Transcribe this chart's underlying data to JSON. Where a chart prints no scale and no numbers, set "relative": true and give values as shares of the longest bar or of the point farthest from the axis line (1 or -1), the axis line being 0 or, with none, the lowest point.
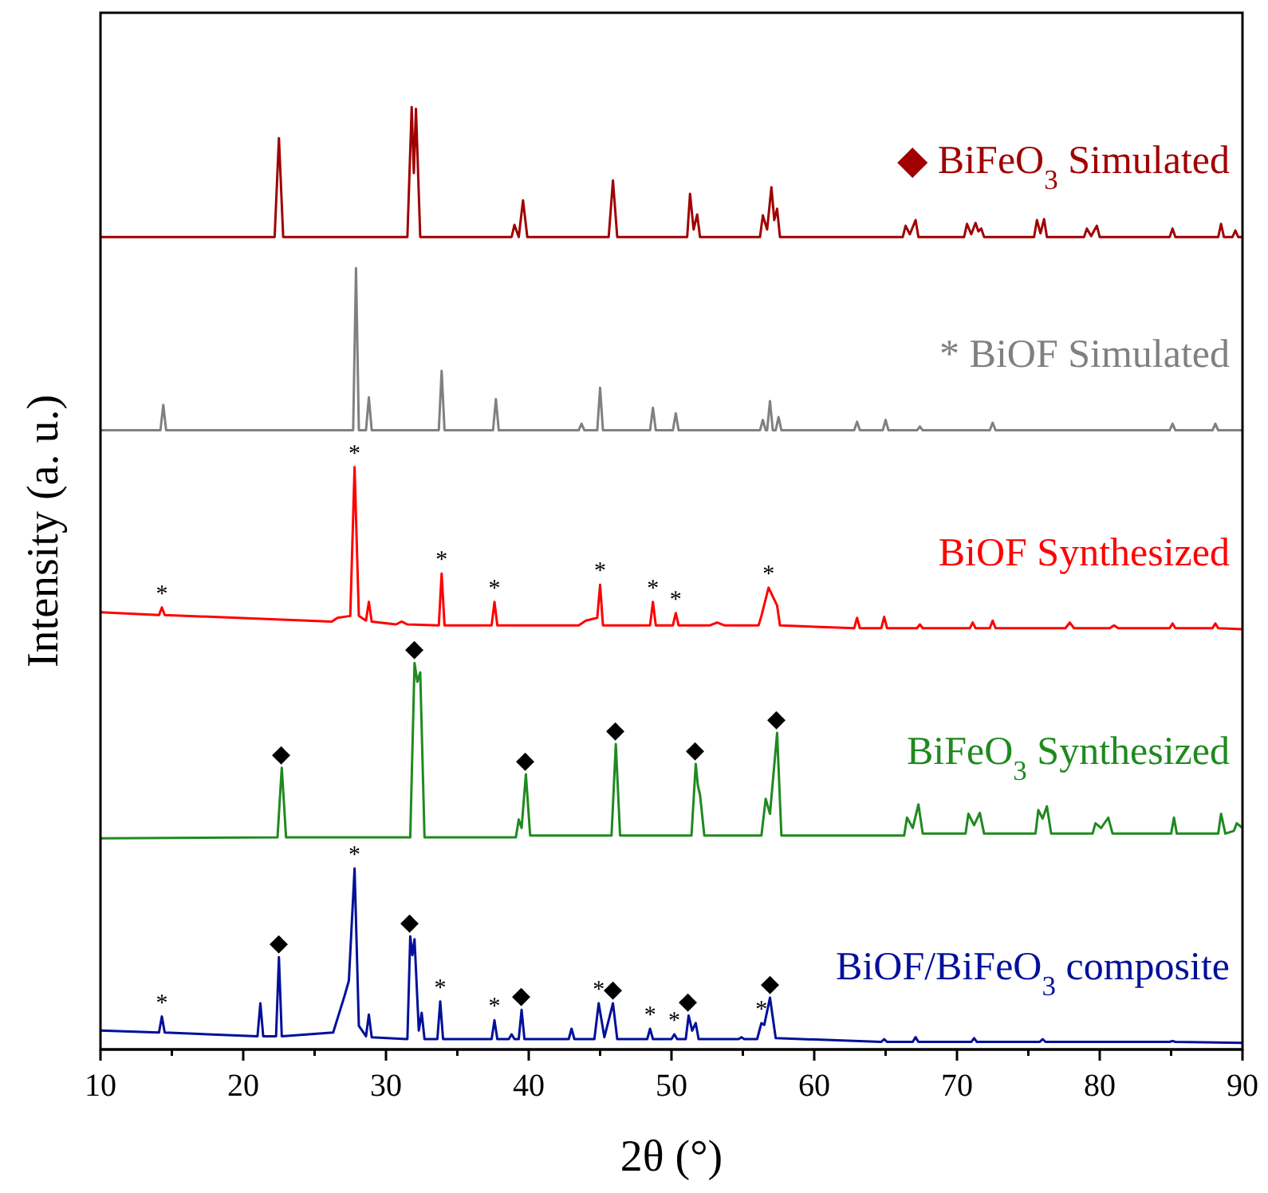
{
  "chart_data": {
    "type": "line",
    "relative": true,
    "xlabel": "2θ (°)",
    "ylabel": "Intensity (a. u.)",
    "xlim": [
      10,
      90
    ],
    "xticks": [
      10,
      {
        "value": 15,
        "label": null
      },
      20,
      {
        "value": 25,
        "label": null
      },
      30,
      {
        "value": 35,
        "label": null
      },
      40,
      {
        "value": 45,
        "label": null
      },
      50,
      {
        "value": 55,
        "label": null
      },
      60,
      {
        "value": 65,
        "label": null
      },
      70,
      {
        "value": 75,
        "label": null
      },
      80,
      {
        "value": 85,
        "label": null
      },
      90
    ],
    "marker": "none",
    "line_style": "solid",
    "grid": false,
    "series": [
      {
        "name": "◆ BiFeO$_{3}$ Simulated",
        "color": "#a00000",
        "x": [
          10,
          22.2,
          22.5,
          22.8,
          31.5,
          31.8,
          31.95,
          32.1,
          32.4,
          38.8,
          39.0,
          39.3,
          39.6,
          39.9,
          45.6,
          45.9,
          46.2,
          51.1,
          51.3,
          51.55,
          51.8,
          52.0,
          56.2,
          56.4,
          56.7,
          57.0,
          57.2,
          57.4,
          57.6,
          66.2,
          66.4,
          66.7,
          67.1,
          67.3,
          70.5,
          70.7,
          71.0,
          71.3,
          71.5,
          71.7,
          71.9,
          75.4,
          75.6,
          75.85,
          76.1,
          76.3,
          78.9,
          79.1,
          79.4,
          79.8,
          80.0,
          84.9,
          85.1,
          85.3,
          88.3,
          88.5,
          88.7,
          89.3,
          89.5,
          89.7,
          90
        ],
        "values": [
          0.862,
          0.862,
          0.967,
          0.862,
          0.862,
          1,
          0.93,
          0.998,
          0.862,
          0.862,
          0.875,
          0.862,
          0.901,
          0.862,
          0.862,
          0.922,
          0.862,
          0.862,
          0.908,
          0.87,
          0.886,
          0.862,
          0.862,
          0.885,
          0.87,
          0.915,
          0.88,
          0.892,
          0.862,
          0.862,
          0.874,
          0.865,
          0.88,
          0.862,
          0.862,
          0.876,
          0.865,
          0.877,
          0.868,
          0.871,
          0.862,
          0.862,
          0.88,
          0.866,
          0.881,
          0.862,
          0.862,
          0.871,
          0.863,
          0.874,
          0.862,
          0.862,
          0.871,
          0.862,
          0.862,
          0.876,
          0.862,
          0.862,
          0.869,
          0.862,
          0.862
        ]
      },
      {
        "name": "* BiOF Simulated",
        "color": "#808080",
        "x": [
          10,
          14.2,
          14.4,
          14.6,
          27.7,
          27.9,
          28.1,
          28.6,
          28.8,
          29.0,
          33.7,
          33.9,
          34.1,
          37.5,
          37.7,
          37.9,
          43.5,
          43.7,
          43.9,
          44.8,
          45.0,
          45.2,
          48.5,
          48.7,
          48.9,
          50.1,
          50.3,
          50.5,
          56.2,
          56.4,
          56.6,
          56.7,
          56.9,
          57.1,
          57.3,
          57.5,
          57.7,
          62.8,
          63.0,
          63.2,
          64.8,
          65.0,
          65.2,
          67.2,
          67.4,
          67.6,
          72.3,
          72.5,
          72.7,
          84.9,
          85.1,
          85.3,
          87.9,
          88.1,
          88.3,
          90
        ],
        "values": [
          0.657,
          0.657,
          0.684,
          0.657,
          0.657,
          0.829,
          0.657,
          0.657,
          0.692,
          0.657,
          0.657,
          0.72,
          0.657,
          0.657,
          0.69,
          0.657,
          0.657,
          0.664,
          0.657,
          0.657,
          0.702,
          0.657,
          0.657,
          0.681,
          0.657,
          0.657,
          0.675,
          0.657,
          0.657,
          0.668,
          0.657,
          0.657,
          0.688,
          0.657,
          0.657,
          0.671,
          0.657,
          0.657,
          0.666,
          0.657,
          0.657,
          0.668,
          0.657,
          0.657,
          0.661,
          0.657,
          0.657,
          0.665,
          0.657,
          0.657,
          0.664,
          0.657,
          0.657,
          0.664,
          0.657,
          0.657
        ]
      },
      {
        "name": "BiOF Synthesized",
        "color": "#ff0000",
        "x": [
          10,
          14.1,
          14.3,
          14.5,
          26.2,
          26.6,
          27.5,
          27.8,
          28.1,
          28.6,
          28.8,
          29.0,
          30.7,
          31.1,
          31.5,
          33.7,
          33.9,
          34.1,
          37.4,
          37.6,
          37.8,
          43.5,
          44.0,
          44.8,
          45.0,
          45.2,
          48.5,
          48.7,
          48.9,
          50.1,
          50.3,
          50.5,
          52.7,
          53.2,
          53.7,
          56.1,
          56.3,
          56.8,
          57.4,
          57.6,
          62.8,
          63.0,
          63.2,
          64.7,
          64.9,
          65.1,
          67.2,
          67.4,
          67.6,
          70.9,
          71.1,
          71.3,
          72.3,
          72.5,
          72.7,
          77.6,
          77.9,
          78.2,
          80.7,
          81.0,
          81.3,
          84.9,
          85.1,
          85.3,
          87.9,
          88.1,
          88.3,
          90
        ],
        "values": [
          0.464,
          0.461,
          0.469,
          0.461,
          0.454,
          0.458,
          0.46,
          0.618,
          0.46,
          0.455,
          0.475,
          0.454,
          0.451,
          0.454,
          0.451,
          0.45,
          0.505,
          0.45,
          0.45,
          0.475,
          0.45,
          0.45,
          0.455,
          0.458,
          0.493,
          0.45,
          0.45,
          0.475,
          0.45,
          0.45,
          0.463,
          0.45,
          0.45,
          0.453,
          0.45,
          0.45,
          0.46,
          0.49,
          0.471,
          0.45,
          0.447,
          0.458,
          0.447,
          0.447,
          0.459,
          0.447,
          0.447,
          0.451,
          0.447,
          0.447,
          0.453,
          0.447,
          0.447,
          0.455,
          0.447,
          0.447,
          0.453,
          0.447,
          0.447,
          0.45,
          0.447,
          0.447,
          0.452,
          0.447,
          0.447,
          0.452,
          0.447,
          0.446
        ]
      },
      {
        "name": "BiFeO$_{3}$ Synthesized",
        "color": "#1f8a1f",
        "x": [
          10,
          22.4,
          22.7,
          23.0,
          31.7,
          32.0,
          32.2,
          32.4,
          32.7,
          39.1,
          39.3,
          39.5,
          39.8,
          40.1,
          45.8,
          46.1,
          46.4,
          51.4,
          51.7,
          51.85,
          52.0,
          52.3,
          56.3,
          56.6,
          56.9,
          57.4,
          57.7,
          66.3,
          66.5,
          66.9,
          67.3,
          67.6,
          70.6,
          70.8,
          71.2,
          71.6,
          71.9,
          75.5,
          75.7,
          76.0,
          76.3,
          76.6,
          79.5,
          79.7,
          80.1,
          80.6,
          80.9,
          85.0,
          85.2,
          85.4,
          88.3,
          88.5,
          88.8,
          89.4,
          89.6,
          90
        ],
        "values": [
          0.224,
          0.225,
          0.299,
          0.225,
          0.225,
          0.41,
          0.39,
          0.4,
          0.225,
          0.225,
          0.244,
          0.235,
          0.292,
          0.227,
          0.227,
          0.324,
          0.227,
          0.227,
          0.303,
          0.28,
          0.27,
          0.227,
          0.227,
          0.266,
          0.25,
          0.336,
          0.227,
          0.227,
          0.246,
          0.235,
          0.26,
          0.229,
          0.229,
          0.25,
          0.238,
          0.251,
          0.229,
          0.229,
          0.254,
          0.245,
          0.258,
          0.229,
          0.229,
          0.24,
          0.235,
          0.246,
          0.229,
          0.229,
          0.246,
          0.229,
          0.229,
          0.25,
          0.229,
          0.232,
          0.24,
          0.235
        ]
      },
      {
        "name": "BiOF/BiFeO$_{3}$ composite",
        "color": "#00109a",
        "x": [
          10,
          14.1,
          14.3,
          14.5,
          21.0,
          21.2,
          21.4,
          22.3,
          22.5,
          22.7,
          26.3,
          27.1,
          27.4,
          27.8,
          28.1,
          28.6,
          28.8,
          29.0,
          31.5,
          31.7,
          31.85,
          32.0,
          32.3,
          32.5,
          32.7,
          33.6,
          33.8,
          34.0,
          37.4,
          37.6,
          37.8,
          38.6,
          38.8,
          39.0,
          39.3,
          39.5,
          39.7,
          42.8,
          43.0,
          43.2,
          44.6,
          44.9,
          45.3,
          45.9,
          46.2,
          48.3,
          48.5,
          48.7,
          50.0,
          50.2,
          50.4,
          51.0,
          51.2,
          51.45,
          51.7,
          51.9,
          54.7,
          54.9,
          55.1,
          56.0,
          56.3,
          56.5,
          56.9,
          57.3,
          64.7,
          64.9,
          65.1,
          66.9,
          67.1,
          67.3,
          71.0,
          71.2,
          71.4,
          75.8,
          76.0,
          76.2,
          84.9,
          85.1,
          85.3,
          90
        ],
        "values": [
          0.02,
          0.018,
          0.035,
          0.018,
          0.014,
          0.049,
          0.014,
          0.014,
          0.098,
          0.014,
          0.018,
          0.057,
          0.073,
          0.192,
          0.025,
          0.014,
          0.037,
          0.013,
          0.011,
          0.12,
          0.1,
          0.117,
          0.02,
          0.039,
          0.011,
          0.011,
          0.051,
          0.011,
          0.011,
          0.031,
          0.011,
          0.011,
          0.016,
          0.011,
          0.011,
          0.042,
          0.011,
          0.011,
          0.022,
          0.011,
          0.011,
          0.049,
          0.013,
          0.049,
          0.011,
          0.011,
          0.022,
          0.011,
          0.011,
          0.016,
          0.011,
          0.011,
          0.036,
          0.02,
          0.028,
          0.011,
          0.011,
          0.013,
          0.011,
          0.011,
          0.028,
          0.026,
          0.055,
          0.012,
          0.008,
          0.011,
          0.008,
          0.008,
          0.013,
          0.008,
          0.008,
          0.012,
          0.008,
          0.008,
          0.011,
          0.008,
          0.008,
          0.009,
          0.008,
          0.007
        ]
      }
    ],
    "annotations": [
      {
        "text": "*",
        "x": 14.3,
        "y": 0.469
      },
      {
        "text": "*",
        "x": 27.8,
        "y": 0.618
      },
      {
        "text": "*",
        "x": 33.9,
        "y": 0.505
      },
      {
        "text": "*",
        "x": 37.6,
        "y": 0.475
      },
      {
        "text": "*",
        "x": 45.0,
        "y": 0.493
      },
      {
        "text": "*",
        "x": 48.7,
        "y": 0.475
      },
      {
        "text": "*",
        "x": 50.3,
        "y": 0.463
      },
      {
        "text": "*",
        "x": 56.8,
        "y": 0.49
      },
      {
        "text": "◆",
        "x": 22.7,
        "y": 0.299
      },
      {
        "text": "◆",
        "x": 32.0,
        "y": 0.41
      },
      {
        "text": "◆",
        "x": 39.8,
        "y": 0.292
      },
      {
        "text": "◆",
        "x": 46.1,
        "y": 0.324
      },
      {
        "text": "◆",
        "x": 51.7,
        "y": 0.303
      },
      {
        "text": "◆",
        "x": 57.4,
        "y": 0.336
      },
      {
        "text": "*",
        "x": 14.3,
        "y": 0.035
      },
      {
        "text": "◆",
        "x": 22.5,
        "y": 0.098
      },
      {
        "text": "*",
        "x": 27.8,
        "y": 0.192
      },
      {
        "text": "◆",
        "x": 31.7,
        "y": 0.12
      },
      {
        "text": "*",
        "x": 33.8,
        "y": 0.051
      },
      {
        "text": "*",
        "x": 37.6,
        "y": 0.031
      },
      {
        "text": "◆",
        "x": 39.5,
        "y": 0.042
      },
      {
        "text": "*",
        "x": 44.9,
        "y": 0.049
      },
      {
        "text": "◆",
        "x": 45.9,
        "y": 0.049
      },
      {
        "text": "*",
        "x": 48.5,
        "y": 0.022
      },
      {
        "text": "*",
        "x": 50.2,
        "y": 0.016
      },
      {
        "text": "◆",
        "x": 51.2,
        "y": 0.036
      },
      {
        "text": "*",
        "x": 56.3,
        "y": 0.028
      },
      {
        "text": "◆",
        "x": 56.9,
        "y": 0.055
      }
    ]
  }
}
